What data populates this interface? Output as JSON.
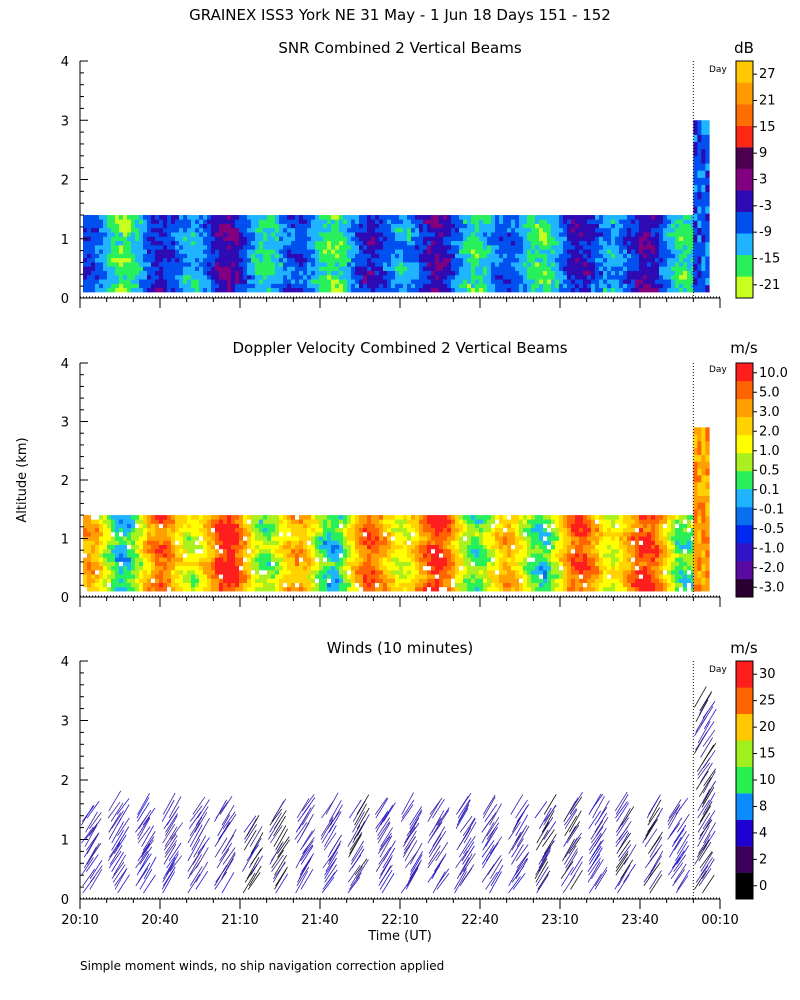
{
  "page_title": "GRAINEX ISS3 York NE  31 May -  1 Jun 18 Days 151 - 152",
  "footnote": "Simple moment winds, no ship navigation correction applied",
  "day_marker_label": "Day",
  "y_axis_label": "Altitude (km)",
  "x_axis_label": "Time (UT)",
  "chart_data": [
    {
      "type": "heatmap",
      "title": "SNR Combined 2 Vertical Beams",
      "unit": "dB",
      "xlabel": "Time (UT)",
      "ylabel": "Altitude (km)",
      "x_ticks": [
        "20:10",
        "20:40",
        "21:10",
        "21:40",
        "22:10",
        "22:40",
        "23:10",
        "23:40",
        "00:10"
      ],
      "y_ticks": [
        "0",
        "1",
        "2",
        "3",
        "4"
      ],
      "ylim": [
        0,
        4
      ],
      "xlim": [
        "20:10",
        "00:10"
      ],
      "day_change_time": "00:00",
      "colorbar_labels": [
        "-21",
        "-15",
        "-9",
        "-3",
        "3",
        "9",
        "15",
        "21",
        "27"
      ],
      "colorbar_colors": [
        "#c8ff1e",
        "#28f05a",
        "#1eb4ff",
        "#0050f0",
        "#2d0ab4",
        "#82007f",
        "#4b0050",
        "#ff2814",
        "#ff6e00",
        "#ff9b00",
        "#ffc800"
      ],
      "data_top_km_before_day_change": 1.4,
      "data_top_km_after_day_change": 3.0
    },
    {
      "type": "heatmap",
      "title": "Doppler Velocity Combined 2 Vertical Beams",
      "unit": "m/s",
      "xlabel": "Time (UT)",
      "ylabel": "Altitude (km)",
      "x_ticks": [
        "20:10",
        "20:40",
        "21:10",
        "21:40",
        "22:10",
        "22:40",
        "23:10",
        "23:40",
        "00:10"
      ],
      "y_ticks": [
        "0",
        "1",
        "2",
        "3",
        "4"
      ],
      "ylim": [
        0,
        4
      ],
      "xlim": [
        "20:10",
        "00:10"
      ],
      "day_change_time": "00:00",
      "colorbar_labels": [
        "10.0",
        "5.0",
        "3.0",
        "2.0",
        "1.0",
        "0.5",
        "0.1",
        "-0.1",
        "-0.5",
        "-1.0",
        "-2.0",
        "-3.0"
      ],
      "colorbar_colors": [
        "#2a0030",
        "#5a0aa0",
        "#3214c8",
        "#0028f0",
        "#0a6ef0",
        "#1eb4ff",
        "#28f05a",
        "#aaf01e",
        "#ffff00",
        "#ffd200",
        "#ffa000",
        "#ff6400",
        "#ff1e1e"
      ],
      "data_top_km_before_day_change": 1.4,
      "data_top_km_after_day_change": 2.9
    },
    {
      "type": "scatter",
      "title": "Winds (10 minutes)",
      "unit": "m/s",
      "xlabel": "Time (UT)",
      "ylabel": "Altitude (km)",
      "x_ticks": [
        "20:10",
        "20:40",
        "21:10",
        "21:40",
        "22:10",
        "22:40",
        "23:10",
        "23:40",
        "00:10"
      ],
      "y_ticks": [
        "0",
        "1",
        "2",
        "3",
        "4"
      ],
      "ylim": [
        0,
        4
      ],
      "xlim": [
        "20:10",
        "00:10"
      ],
      "day_change_time": "00:00",
      "colorbar_labels": [
        "0",
        "2",
        "4",
        "8",
        "10",
        "15",
        "20",
        "25",
        "30"
      ],
      "colorbar_colors": [
        "#000000",
        "#3c005a",
        "#1e00d2",
        "#0a8cff",
        "#28f050",
        "#a0f01e",
        "#ffc800",
        "#ff6400",
        "#ff1e1e"
      ],
      "profile_times": [
        "20:10",
        "20:20",
        "20:30",
        "20:40",
        "20:50",
        "21:00",
        "21:10",
        "21:20",
        "21:30",
        "21:40",
        "21:50",
        "22:00",
        "22:10",
        "22:20",
        "22:30",
        "22:40",
        "22:50",
        "23:00",
        "23:10",
        "23:20",
        "23:30",
        "23:40",
        "23:50",
        "00:00"
      ],
      "profile_top_km": [
        1.4,
        1.55,
        1.45,
        1.45,
        1.45,
        1.45,
        1.2,
        1.4,
        1.55,
        1.5,
        1.5,
        1.5,
        1.5,
        1.5,
        1.55,
        1.5,
        1.5,
        1.45,
        1.55,
        1.55,
        1.55,
        1.45,
        1.45,
        3.25
      ],
      "profile_bottom_km": 0.1,
      "profile_color_class": [
        "purple",
        "purple",
        "purple",
        "purple",
        "purple",
        "purple",
        "mixed",
        "mixed",
        "purple",
        "purple",
        "mixed",
        "purple",
        "purple",
        "purple",
        "purple",
        "purple",
        "purple",
        "mixed",
        "mixed",
        "purple",
        "mixed",
        "mixed",
        "purple",
        "mixed"
      ]
    }
  ]
}
